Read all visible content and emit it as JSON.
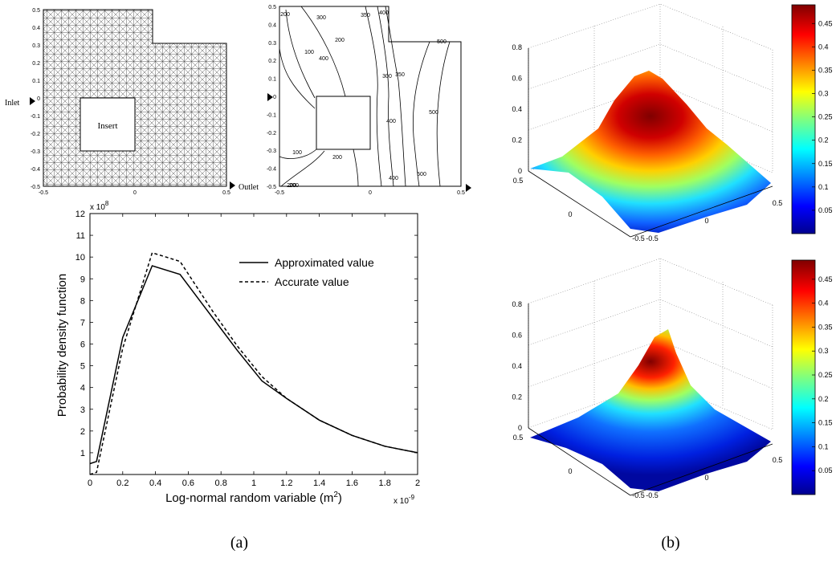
{
  "figure": {
    "label_a": "(a)",
    "label_b": "(b)"
  },
  "domain_panel": {
    "inlet_label": "Inlet",
    "outlet_label": "Outlet",
    "insert_label": "Insert",
    "x_ticks": [
      "-0.5",
      "0",
      "0.5"
    ],
    "y_ticks": [
      "0.5",
      "0.4",
      "0.3",
      "0.2",
      "0.1",
      "0",
      "-0.1",
      "-0.2",
      "-0.3",
      "-0.4",
      "-0.5"
    ]
  },
  "contour_panel": {
    "x_ticks": [
      "-0.5",
      "0",
      "0.5"
    ],
    "y_ticks": [
      "0.5",
      "0.4",
      "0.3",
      "0.2",
      "0.1",
      "0",
      "-0.1",
      "-0.2",
      "-0.3",
      "-0.4",
      "-0.5"
    ],
    "contour_labels": [
      "200",
      "300",
      "350",
      "400",
      "200",
      "100",
      "300",
      "350",
      "400",
      "500",
      "400",
      "500",
      "100",
      "200",
      "200",
      "400",
      "500",
      "200"
    ]
  },
  "chart_data": [
    {
      "type": "line",
      "xlabel": "Log-normal random variable (m²)",
      "xlabel_main": "Log-normal random variable (m",
      "xlabel_sup": "2",
      "xlabel_close": ")",
      "ylabel": "Probability density function",
      "x_multiplier": "x 10",
      "x_multiplier_exp": "-9",
      "y_multiplier": "x 10",
      "y_multiplier_exp": "8",
      "xlim": [
        0,
        2
      ],
      "ylim": [
        0,
        12
      ],
      "x_ticks": [
        "0",
        "0.2",
        "0.4",
        "0.6",
        "0.8",
        "1",
        "1.2",
        "1.4",
        "1.6",
        "1.8",
        "2"
      ],
      "y_ticks": [
        "1",
        "2",
        "3",
        "4",
        "5",
        "6",
        "7",
        "8",
        "9",
        "10",
        "11",
        "12"
      ],
      "legend_position": "top-right",
      "series": [
        {
          "name": "Approximated value",
          "style": "solid",
          "x": [
            0,
            0.04,
            0.2,
            0.38,
            0.55,
            0.75,
            0.9,
            1.05,
            1.2,
            1.4,
            1.6,
            1.8,
            2.0
          ],
          "y": [
            0.5,
            0.6,
            6.3,
            9.6,
            9.2,
            7.2,
            5.7,
            4.3,
            3.5,
            2.5,
            1.8,
            1.3,
            1.0
          ]
        },
        {
          "name": "Accurate value",
          "style": "dashed",
          "x": [
            0,
            0.04,
            0.2,
            0.38,
            0.55,
            0.75,
            0.9,
            1.05,
            1.2,
            1.4,
            1.6,
            1.8,
            2.0
          ],
          "y": [
            0.0,
            0.1,
            5.8,
            10.2,
            9.8,
            7.5,
            5.9,
            4.5,
            3.5,
            2.5,
            1.8,
            1.3,
            1.0
          ]
        }
      ]
    },
    {
      "type": "heatmap",
      "subtype": "3d-surface",
      "z_ticks": [
        "0",
        "0.2",
        "0.4",
        "0.6",
        "0.8"
      ],
      "x_ticks": [
        "-0.5",
        "0",
        "0.5"
      ],
      "y_ticks": [
        "0.5",
        "0",
        "-0.5"
      ],
      "colorbar_ticks": [
        "0.45",
        "0.4",
        "0.35",
        "0.3",
        "0.25",
        "0.2",
        "0.15",
        "0.1",
        "0.05"
      ],
      "colormap": "jet",
      "peak": 0.65
    },
    {
      "type": "heatmap",
      "subtype": "3d-surface",
      "z_ticks": [
        "0",
        "0.2",
        "0.4",
        "0.6",
        "0.8"
      ],
      "x_ticks": [
        "-0.5",
        "0",
        "0.5"
      ],
      "y_ticks": [
        "0.5",
        "0",
        "-0.5"
      ],
      "colorbar_ticks": [
        "0.45",
        "0.4",
        "0.35",
        "0.3",
        "0.25",
        "0.2",
        "0.15",
        "0.1",
        "0.05"
      ],
      "colormap": "jet",
      "peak": 0.6
    }
  ]
}
